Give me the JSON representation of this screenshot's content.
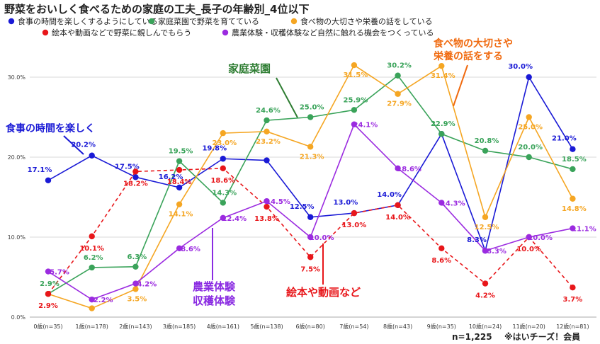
{
  "chart_data": {
    "type": "line",
    "title": "野菜をおいしく食べるための家庭の工夫_長子の年齢別_4位以下",
    "categories": [
      "0歳(n=35)",
      "1歳(n=178)",
      "2歳(n=143)",
      "3歳(n=185)",
      "4歳(n=161)",
      "5歳(n=138)",
      "6歳(n=80)",
      "7歳(n=54)",
      "8歳(n=43)",
      "9歳(n=35)",
      "10歳(n=24)",
      "11歳(n=20)",
      "12歳(n=81)"
    ],
    "ylim": [
      0,
      30
    ],
    "yticks": [
      "0.0%",
      "10.0%",
      "20.0%",
      "30.0%"
    ],
    "legend_position": "top",
    "grid": true,
    "series": [
      {
        "name": "食事の時間を楽しくするようにしている",
        "color": "#1a1ad6",
        "dashed": false,
        "values": [
          17.1,
          20.2,
          17.5,
          16.2,
          19.8,
          19.6,
          12.5,
          13.0,
          14.0,
          22.9,
          8.3,
          30.0,
          21.0
        ],
        "labels": [
          "17.1%",
          "20.2%",
          "17.5%",
          "16.2%",
          "19.8%",
          "",
          "12.5%",
          "13.0%",
          "14.0%",
          "",
          "8.3%",
          "30.0%",
          "21.0%"
        ]
      },
      {
        "name": "家庭菜園で野菜を育てている",
        "color": "#3aa35a",
        "dashed": false,
        "values": [
          2.9,
          6.2,
          6.3,
          19.5,
          14.3,
          24.6,
          25.0,
          25.9,
          30.2,
          22.9,
          20.8,
          20.0,
          18.5
        ],
        "labels": [
          "2.9%",
          "6.2%",
          "6.3%",
          "19.5%",
          "14.3%",
          "24.6%",
          "25.0%",
          "25.9%",
          "30.2%",
          "22.9%",
          "20.8%",
          "20.0%",
          "18.5%"
        ]
      },
      {
        "name": "食べ物の大切さや栄養の話をしている",
        "color": "#f5a623",
        "dashed": false,
        "values": [
          2.9,
          1.1,
          3.5,
          14.1,
          23.0,
          23.2,
          21.3,
          31.5,
          27.9,
          31.4,
          12.5,
          25.0,
          14.8
        ],
        "labels": [
          "",
          "",
          "3.5%",
          "14.1%",
          "23.0%",
          "23.2%",
          "21.3%",
          "31.5%",
          "27.9%",
          "31.4%",
          "12.5%",
          "25.0%",
          "14.8%"
        ]
      },
      {
        "name": "絵本や動画などで野菜に親しんでもらう",
        "color": "#e8161a",
        "dashed": true,
        "values": [
          2.9,
          10.1,
          18.2,
          18.4,
          18.6,
          13.8,
          7.5,
          13.0,
          14.0,
          8.6,
          4.2,
          10.0,
          3.7
        ],
        "labels": [
          "2.9%",
          "10.1%",
          "18.2%",
          "18.4%",
          "18.6%",
          "13.8%",
          "7.5%",
          "13.0%",
          "14.0%",
          "8.6%",
          "4.2%",
          "10.0%",
          "3.7%"
        ]
      },
      {
        "name": "農業体験・収穫体験など自然に触れる機会をつくっている",
        "color": "#9b2be0",
        "dashed": false,
        "values": [
          5.7,
          2.2,
          4.2,
          8.6,
          12.4,
          14.5,
          10.0,
          24.1,
          18.6,
          14.3,
          8.3,
          10.0,
          11.1
        ],
        "labels": [
          "5.7%",
          "2.2%",
          "4.2%",
          "8.6%",
          "12.4%",
          "14.5%",
          "10.0%",
          "24.1%",
          "18.6%",
          "14.3%",
          "8.3%",
          "10.0%",
          "11.1%"
        ]
      }
    ],
    "annotations": [
      {
        "text": "食事の時間を楽しく",
        "color": "#1a1ad6"
      },
      {
        "text": "家庭菜園",
        "color": "#2e7d32"
      },
      {
        "text": "食べ物の大切さや",
        "color": "#f06a0f"
      },
      {
        "text": "栄養の話をする",
        "color": "#f06a0f"
      },
      {
        "text": "農業体験",
        "color": "#8a2be2"
      },
      {
        "text": "収穫体験",
        "color": "#8a2be2"
      },
      {
        "text": "絵本や動画など",
        "color": "#e8161a"
      }
    ],
    "footer": {
      "n": "n=1,225",
      "source": "※はいチーズ！会員"
    }
  }
}
